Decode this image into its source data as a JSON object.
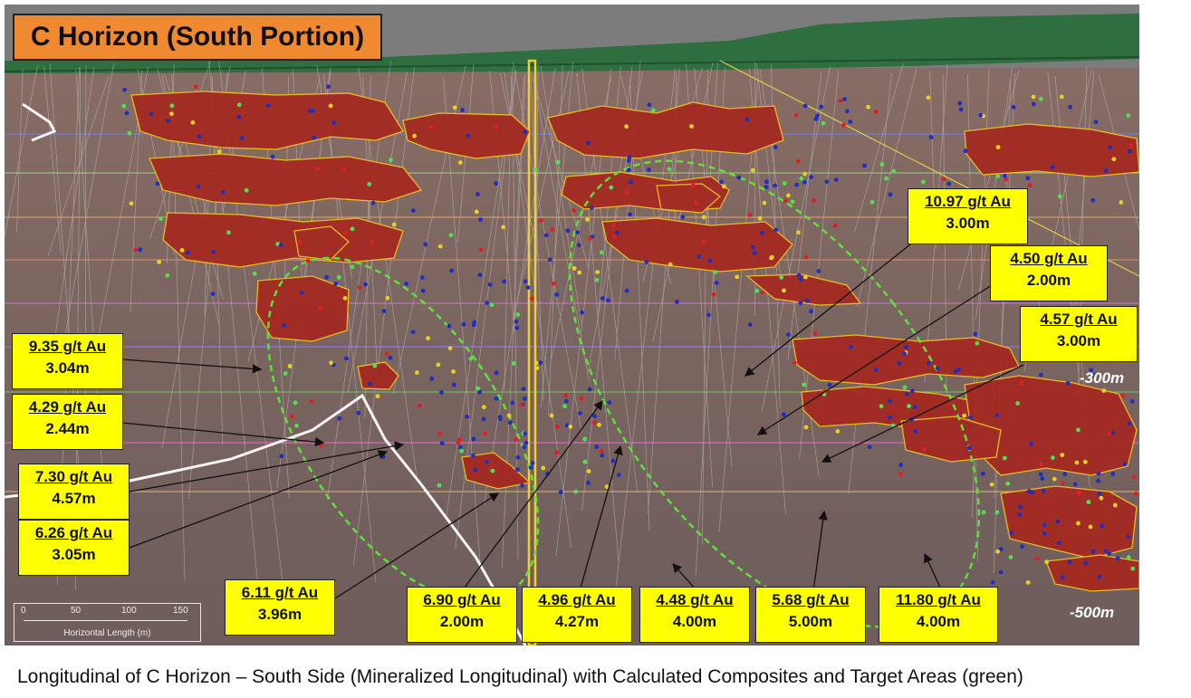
{
  "title": "C Horizon (South Portion)",
  "caption": "Longitudinal of C Horizon – South Side (Mineralized Longitudinal) with Calculated Composites and Target Areas (green)",
  "depth_labels": [
    "-300m",
    "-500m"
  ],
  "scale_bar": {
    "ticks": [
      "0",
      "50",
      "100",
      "150"
    ],
    "label": "Horizontal Length (m)"
  },
  "callouts": [
    {
      "grade": "10.97 g/t Au",
      "length": "3.00m"
    },
    {
      "grade": "4.50 g/t Au",
      "length": "2.00m"
    },
    {
      "grade": "4.57 g/t Au",
      "length": "3.00m"
    },
    {
      "grade": "9.35 g/t Au",
      "length": "3.04m"
    },
    {
      "grade": "4.29 g/t Au",
      "length": "2.44m"
    },
    {
      "grade": "7.30 g/t Au",
      "length": "4.57m"
    },
    {
      "grade": "6.26 g/t Au",
      "length": "3.05m"
    },
    {
      "grade": "6.11 g/t Au",
      "length": "3.96m"
    },
    {
      "grade": "6.90 g/t Au",
      "length": "2.00m"
    },
    {
      "grade": "4.96 g/t Au",
      "length": "4.27m"
    },
    {
      "grade": "4.48 g/t Au",
      "length": "4.00m"
    },
    {
      "grade": "5.68 g/t Au",
      "length": "5.00m"
    },
    {
      "grade": "11.80 g/t Au",
      "length": "4.00m"
    }
  ],
  "colors": {
    "background": "#7a6560",
    "topography": "#2f6e3f",
    "mineralized_zone": "#a32a22",
    "zone_outline": "#f0c020",
    "target_area": "#5fe03a",
    "callout_fill": "#ffff00",
    "title_fill": "#f08a30"
  }
}
